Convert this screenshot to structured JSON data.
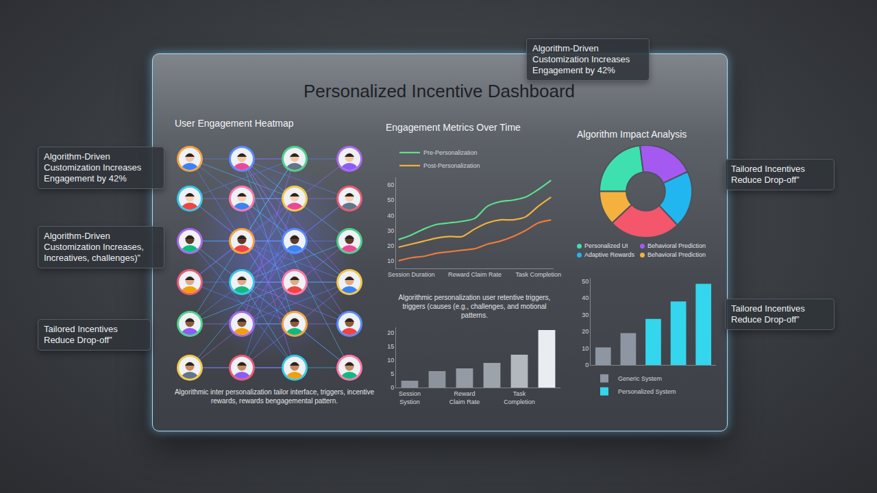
{
  "title": "Personalized Incentive Dashboard",
  "callouts": [
    "Algorithm-Driven Customization Increases Engagement by 42%",
    "Algorithm-Driven Customization Increases Engagement by 42%",
    "Algorithm-Driven Customization Increases, Increatives, challenges)”",
    "Tailored Incentives Reduce Drop-off”",
    "Tailored Incentives Reduce Drop-off”",
    "Tailored Incentives Reduce Drop-off”"
  ],
  "heatmap": {
    "title": "User Engagement Heatmap",
    "caption": "Algorithmic inter personalization tailor interface, triggers, incentive rewards, rewards bengagemental pattern."
  },
  "chart_data": [
    {
      "type": "line",
      "title": "Engagement Metrics Over Time",
      "categories": [
        null,
        "Session Duration",
        null,
        null,
        null,
        null,
        "Reward Claim Rate",
        null,
        null,
        null,
        null,
        "Task Completion",
        null
      ],
      "series": [
        {
          "name": "Pre-Personalization",
          "color": "#5ee08e",
          "values": [
            24,
            27,
            31,
            34,
            35,
            36,
            38,
            46,
            49,
            50,
            52,
            57,
            63
          ]
        },
        {
          "name": "Post-Personalization",
          "color": "#f2b13f",
          "values": [
            19,
            21,
            23,
            25,
            26,
            26,
            31,
            35,
            37,
            37,
            39,
            46,
            52
          ]
        },
        {
          "color": "#ef7a3c",
          "values": [
            10,
            12,
            13,
            15,
            16,
            17,
            18,
            21,
            23,
            26,
            30,
            35,
            37
          ]
        }
      ],
      "ylim": [
        5,
        65
      ],
      "yticks": [
        10,
        20,
        30,
        40,
        50,
        60
      ],
      "grid": false,
      "legend": "top"
    },
    {
      "type": "bar",
      "caption": "Algorithmic personalization user retentive triggers, triggers (causes (e.g., challenges, and motional patterns.",
      "categories": [
        "Session Systion",
        null,
        "Reward Claim Rate",
        null,
        "Task Completion",
        null
      ],
      "values": [
        2.5,
        6,
        7,
        9,
        12,
        21
      ],
      "colors": [
        "#8d939c",
        "#8d939c",
        "#959ba4",
        "#9da3ab",
        "#b3b8bf",
        "#e9edf2"
      ],
      "ylim": [
        0,
        22
      ],
      "yticks": [
        0,
        5,
        10,
        15,
        20
      ],
      "grid": false
    },
    {
      "type": "pie",
      "title": "Algorithm Impact Analysis",
      "categories": [
        "Personalized UI",
        "Behavioral Prediction",
        "Adaptive Rewards",
        null,
        "Behavioral Prediction"
      ],
      "values": [
        23,
        20,
        20,
        25,
        12
      ],
      "colors": [
        "#3fe0b0",
        "#a45af0",
        "#22b6f0",
        "#f4566c",
        "#f5b13e"
      ],
      "legend": "bottom"
    },
    {
      "type": "bar",
      "categories": [
        null,
        null,
        null,
        null,
        null
      ],
      "series": [
        {
          "name": "Generic System",
          "color": "#8e96a3",
          "values": [
            10.5,
            19,
            null,
            null,
            null
          ]
        },
        {
          "name": "Personalized System",
          "color": "#33d6ec",
          "values": [
            null,
            null,
            27.5,
            38,
            48.5
          ]
        }
      ],
      "ylim": [
        0,
        52
      ],
      "yticks": [
        0,
        10,
        20,
        30,
        40,
        50
      ],
      "grid": false,
      "tick_labels": "y",
      "legend": "bottom"
    }
  ]
}
